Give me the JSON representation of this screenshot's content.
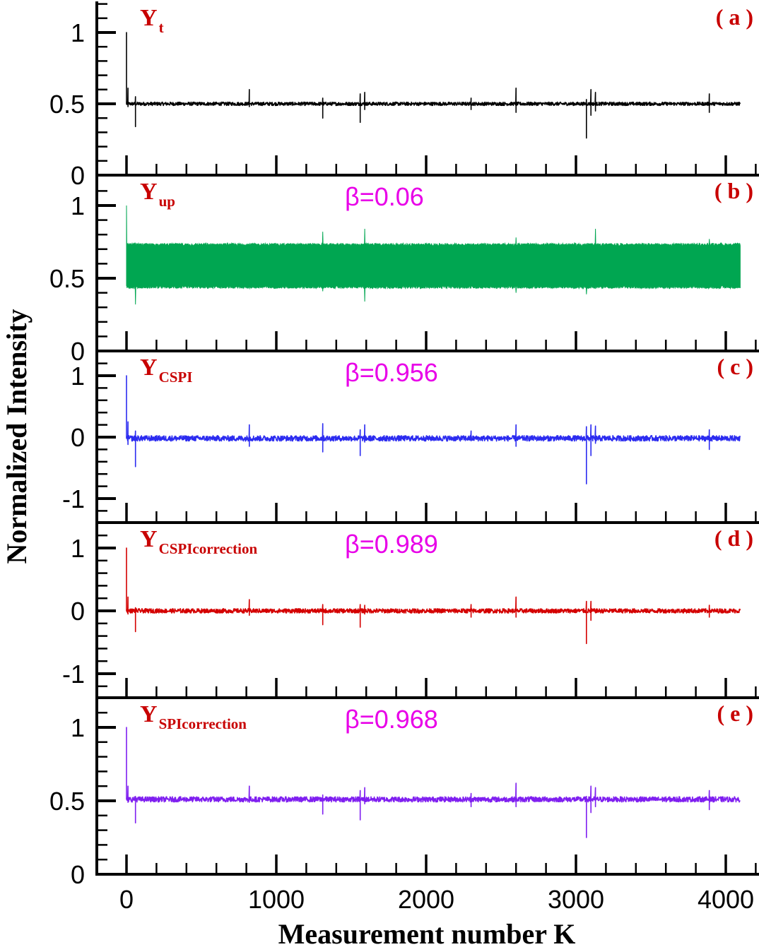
{
  "chart_data": {
    "type": "line",
    "layout": "5 vertically stacked panels sharing x-axis",
    "xlabel": "Measurement number K",
    "ylabel": "Normalized Intensity",
    "xlim": [
      -200,
      4200
    ],
    "xticks": [
      0,
      1000,
      2000,
      3000,
      4000
    ],
    "x_minor_step": 200,
    "x_range_data": [
      0,
      4096
    ],
    "spike_positions_K": [
      0,
      60,
      820,
      1310,
      1560,
      1590,
      2300,
      2600,
      3070,
      3100,
      3150,
      3890
    ],
    "panels": [
      {
        "id": "a",
        "tag": "( a )",
        "label_main": "Y",
        "label_sub": "t",
        "beta": null,
        "color": "#000000",
        "ylim": [
          0,
          1.2
        ],
        "yticks": [
          0,
          0.5,
          1
        ],
        "ytick_labels": [
          "0",
          "0.5",
          "1"
        ],
        "baseline": 0.5,
        "noise_amp": 0.012,
        "band": false,
        "peak_first": 1.0,
        "spikes": [
          {
            "k": 10,
            "hi": 0.61,
            "lo": 0.48
          },
          {
            "k": 60,
            "hi": 0.55,
            "lo": 0.34
          },
          {
            "k": 820,
            "hi": 0.6,
            "lo": 0.48
          },
          {
            "k": 1310,
            "hi": 0.54,
            "lo": 0.4
          },
          {
            "k": 1560,
            "hi": 0.57,
            "lo": 0.37
          },
          {
            "k": 1590,
            "hi": 0.58,
            "lo": 0.46
          },
          {
            "k": 2300,
            "hi": 0.54,
            "lo": 0.46
          },
          {
            "k": 2600,
            "hi": 0.61,
            "lo": 0.44
          },
          {
            "k": 3070,
            "hi": 0.53,
            "lo": 0.26
          },
          {
            "k": 3100,
            "hi": 0.6,
            "lo": 0.42
          },
          {
            "k": 3130,
            "hi": 0.58,
            "lo": 0.45
          },
          {
            "k": 3890,
            "hi": 0.57,
            "lo": 0.44
          }
        ]
      },
      {
        "id": "b",
        "tag": "( b )",
        "label_main": "Y",
        "label_sub": "up",
        "beta": "β=0.06",
        "color": "#00a651",
        "ylim": [
          0,
          1.2
        ],
        "yticks": [
          0,
          0.5,
          1
        ],
        "ytick_labels": [
          "0",
          "0.5",
          "1"
        ],
        "baseline": 0.585,
        "band": true,
        "band_hi": 0.73,
        "band_lo": 0.44,
        "noise_amp": 0.01,
        "peak_first": 1.0,
        "spikes": [
          {
            "k": 60,
            "hi": 0.74,
            "lo": 0.32
          },
          {
            "k": 1310,
            "hi": 0.82,
            "lo": 0.41
          },
          {
            "k": 1590,
            "hi": 0.84,
            "lo": 0.34
          },
          {
            "k": 2600,
            "hi": 0.78,
            "lo": 0.4
          },
          {
            "k": 3070,
            "hi": 0.74,
            "lo": 0.39
          },
          {
            "k": 3130,
            "hi": 0.84,
            "lo": 0.43
          },
          {
            "k": 3890,
            "hi": 0.77,
            "lo": 0.43
          }
        ]
      },
      {
        "id": "c",
        "tag": "( c )",
        "label_main": "Y",
        "label_sub": "CSPI",
        "beta": "β=0.956",
        "color": "#2b2bf0",
        "ylim": [
          -1.4,
          1.4
        ],
        "yticks": [
          -1,
          0,
          1
        ],
        "ytick_labels": [
          "-1",
          "0",
          "1"
        ],
        "baseline": -0.02,
        "noise_amp": 0.045,
        "band": false,
        "peak_first": 1.0,
        "spikes": [
          {
            "k": 10,
            "hi": 0.25,
            "lo": -0.12
          },
          {
            "k": 60,
            "hi": 0.1,
            "lo": -0.48
          },
          {
            "k": 820,
            "hi": 0.2,
            "lo": -0.15
          },
          {
            "k": 1310,
            "hi": 0.22,
            "lo": -0.24
          },
          {
            "k": 1560,
            "hi": 0.12,
            "lo": -0.3
          },
          {
            "k": 1590,
            "hi": 0.2,
            "lo": -0.08
          },
          {
            "k": 2300,
            "hi": 0.1,
            "lo": -0.06
          },
          {
            "k": 2600,
            "hi": 0.2,
            "lo": -0.15
          },
          {
            "k": 3070,
            "hi": 0.17,
            "lo": -0.76
          },
          {
            "k": 3100,
            "hi": 0.2,
            "lo": -0.3
          },
          {
            "k": 3130,
            "hi": 0.18,
            "lo": -0.1
          },
          {
            "k": 3890,
            "hi": 0.12,
            "lo": -0.2
          }
        ]
      },
      {
        "id": "d",
        "tag": "( d )",
        "label_main": "Y",
        "label_sub": "CSPIcorrection",
        "beta": "β=0.989",
        "color": "#d40000",
        "ylim": [
          -1.4,
          1.4
        ],
        "yticks": [
          -1,
          0,
          1
        ],
        "ytick_labels": [
          "-1",
          "0",
          "1"
        ],
        "baseline": 0.0,
        "noise_amp": 0.035,
        "band": false,
        "peak_first": 1.0,
        "spikes": [
          {
            "k": 10,
            "hi": 0.22,
            "lo": -0.05
          },
          {
            "k": 60,
            "hi": 0.05,
            "lo": -0.33
          },
          {
            "k": 820,
            "hi": 0.18,
            "lo": -0.07
          },
          {
            "k": 1310,
            "hi": 0.1,
            "lo": -0.22
          },
          {
            "k": 1560,
            "hi": 0.1,
            "lo": -0.26
          },
          {
            "k": 1590,
            "hi": 0.09,
            "lo": -0.05
          },
          {
            "k": 2300,
            "hi": 0.1,
            "lo": -0.1
          },
          {
            "k": 2600,
            "hi": 0.22,
            "lo": -0.1
          },
          {
            "k": 3070,
            "hi": 0.15,
            "lo": -0.52
          },
          {
            "k": 3100,
            "hi": 0.15,
            "lo": -0.15
          },
          {
            "k": 3890,
            "hi": 0.09,
            "lo": -0.1
          }
        ]
      },
      {
        "id": "e",
        "tag": "( e )",
        "label_main": "Y",
        "label_sub": "SPIcorrection",
        "beta": "β=0.968",
        "color": "#7f1ff0",
        "ylim": [
          0,
          1.2
        ],
        "yticks": [
          0,
          0.5,
          1
        ],
        "ytick_labels": [
          "0",
          "0.5",
          "1"
        ],
        "baseline": 0.51,
        "noise_amp": 0.018,
        "band": false,
        "peak_first": 1.0,
        "spikes": [
          {
            "k": 10,
            "hi": 0.6,
            "lo": 0.49
          },
          {
            "k": 60,
            "hi": 0.53,
            "lo": 0.35
          },
          {
            "k": 820,
            "hi": 0.6,
            "lo": 0.49
          },
          {
            "k": 1310,
            "hi": 0.54,
            "lo": 0.41
          },
          {
            "k": 1560,
            "hi": 0.57,
            "lo": 0.37
          },
          {
            "k": 1590,
            "hi": 0.59,
            "lo": 0.48
          },
          {
            "k": 2300,
            "hi": 0.55,
            "lo": 0.46
          },
          {
            "k": 2600,
            "hi": 0.62,
            "lo": 0.46
          },
          {
            "k": 3070,
            "hi": 0.53,
            "lo": 0.25
          },
          {
            "k": 3100,
            "hi": 0.6,
            "lo": 0.42
          },
          {
            "k": 3130,
            "hi": 0.59,
            "lo": 0.46
          },
          {
            "k": 3890,
            "hi": 0.57,
            "lo": 0.44
          }
        ]
      }
    ]
  },
  "colors": {
    "axis": "#000000",
    "series_label": "#c80000",
    "beta_text": "#e800e8",
    "panel_tag": "#c80000"
  }
}
